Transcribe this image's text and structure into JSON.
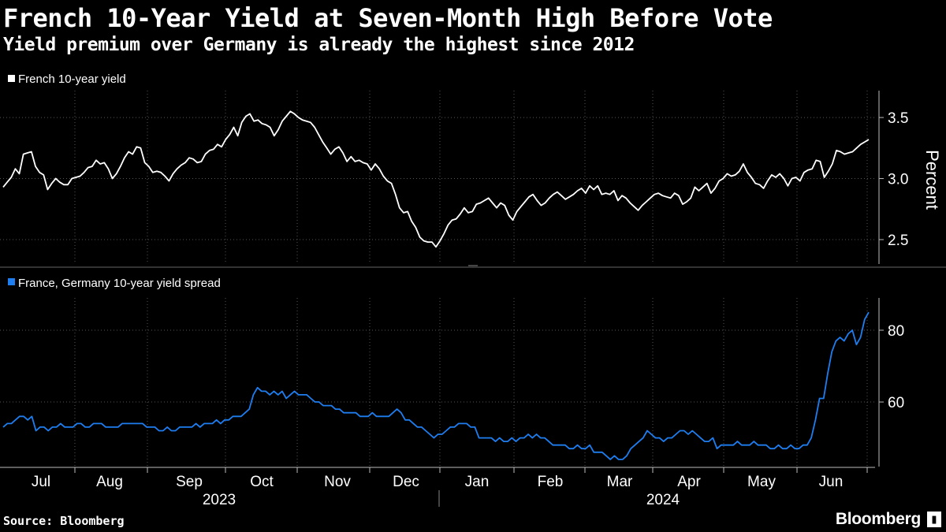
{
  "header": {
    "title": "French 10-Year Yield at Seven-Month High Before Vote",
    "subtitle": "Yield premium over Germany is already the highest since 2012"
  },
  "footer": {
    "source": "Source: Bloomberg",
    "brand": "Bloomberg"
  },
  "colors": {
    "background": "#000000",
    "yield_line": "#ffffff",
    "spread_line": "#1e7ef0",
    "grid": "#555555"
  },
  "chart_data": [
    {
      "type": "line",
      "title": "French 10-year yield",
      "legend": "French 10-year yield",
      "ylabel": "Percent",
      "ylim": [
        2.3,
        3.72
      ],
      "yticks": [
        2.5,
        3.0,
        3.5
      ],
      "ytick_labels": [
        "2.5",
        "3.0",
        "3.5"
      ],
      "x_start": "2023-06-26",
      "x_end": "2024-06-24",
      "values": [
        2.93,
        2.97,
        3.01,
        3.08,
        3.04,
        3.2,
        3.21,
        3.22,
        3.1,
        3.05,
        3.03,
        2.91,
        2.96,
        3.0,
        2.97,
        2.95,
        2.95,
        3.0,
        3.01,
        3.02,
        3.05,
        3.09,
        3.1,
        3.15,
        3.12,
        3.13,
        3.08,
        3.0,
        3.04,
        3.1,
        3.17,
        3.22,
        3.2,
        3.26,
        3.25,
        3.13,
        3.1,
        3.05,
        3.06,
        3.05,
        3.02,
        2.98,
        3.04,
        3.08,
        3.11,
        3.13,
        3.17,
        3.16,
        3.13,
        3.14,
        3.2,
        3.23,
        3.24,
        3.28,
        3.26,
        3.32,
        3.36,
        3.42,
        3.35,
        3.46,
        3.51,
        3.53,
        3.47,
        3.48,
        3.45,
        3.44,
        3.42,
        3.35,
        3.4,
        3.47,
        3.51,
        3.55,
        3.53,
        3.5,
        3.48,
        3.47,
        3.46,
        3.42,
        3.36,
        3.3,
        3.25,
        3.2,
        3.24,
        3.26,
        3.21,
        3.14,
        3.18,
        3.14,
        3.15,
        3.13,
        3.12,
        3.07,
        3.12,
        3.08,
        3.02,
        2.98,
        2.96,
        2.87,
        2.76,
        2.72,
        2.73,
        2.65,
        2.6,
        2.52,
        2.49,
        2.48,
        2.48,
        2.44,
        2.49,
        2.55,
        2.62,
        2.66,
        2.67,
        2.71,
        2.76,
        2.72,
        2.73,
        2.79,
        2.8,
        2.82,
        2.84,
        2.8,
        2.76,
        2.8,
        2.78,
        2.7,
        2.66,
        2.73,
        2.77,
        2.81,
        2.85,
        2.87,
        2.82,
        2.78,
        2.8,
        2.84,
        2.87,
        2.89,
        2.86,
        2.83,
        2.85,
        2.87,
        2.9,
        2.92,
        2.88,
        2.94,
        2.91,
        2.94,
        2.87,
        2.88,
        2.87,
        2.9,
        2.82,
        2.86,
        2.84,
        2.8,
        2.77,
        2.74,
        2.78,
        2.81,
        2.84,
        2.87,
        2.88,
        2.86,
        2.85,
        2.84,
        2.88,
        2.86,
        2.79,
        2.81,
        2.84,
        2.93,
        2.9,
        2.93,
        2.96,
        2.88,
        2.92,
        2.98,
        3.0,
        3.04,
        3.02,
        3.03,
        3.06,
        3.12,
        3.05,
        3.01,
        2.96,
        2.95,
        2.92,
        2.98,
        3.03,
        3.01,
        3.04,
        3.0,
        2.94,
        3.0,
        3.01,
        2.98,
        3.05,
        3.07,
        3.08,
        3.15,
        3.14,
        3.01,
        3.06,
        3.12,
        3.23,
        3.22,
        3.2,
        3.21,
        3.22,
        3.25,
        3.28,
        3.3,
        3.32
      ]
    },
    {
      "type": "line",
      "title": "France, Germany 10-year yield spread",
      "legend": "France, Germany 10-year yield spread",
      "ylabel": "",
      "ylim": [
        42,
        89
      ],
      "yticks": [
        60,
        80
      ],
      "ytick_labels": [
        "60",
        "80"
      ],
      "x_start": "2023-06-26",
      "x_end": "2024-06-24",
      "values": [
        53,
        54,
        54,
        55,
        56,
        56,
        55,
        56,
        52,
        53,
        53,
        52,
        53,
        53,
        54,
        53,
        53,
        53,
        54,
        54,
        53,
        53,
        54,
        54,
        54,
        53,
        53,
        53,
        53,
        54,
        54,
        54,
        54,
        54,
        54,
        53,
        53,
        53,
        52,
        52,
        53,
        52,
        52,
        53,
        53,
        53,
        53,
        54,
        53,
        54,
        54,
        54,
        55,
        54,
        55,
        55,
        56,
        56,
        56,
        57,
        58,
        62,
        64,
        63,
        63,
        62,
        63,
        62,
        63,
        61,
        62,
        63,
        62,
        62,
        62,
        61,
        60,
        60,
        59,
        59,
        59,
        58,
        58,
        57,
        57,
        57,
        57,
        56,
        56,
        56,
        57,
        56,
        56,
        56,
        56,
        57,
        58,
        57,
        55,
        55,
        54,
        53,
        53,
        52,
        51,
        50,
        51,
        51,
        52,
        53,
        53,
        54,
        54,
        54,
        53,
        53,
        50,
        50,
        50,
        50,
        49,
        50,
        49,
        49,
        50,
        49,
        50,
        50,
        51,
        50,
        51,
        50,
        50,
        49,
        48,
        48,
        48,
        48,
        47,
        47,
        48,
        47,
        47,
        48,
        46,
        46,
        46,
        45,
        44,
        45,
        44,
        44,
        45,
        47,
        48,
        49,
        50,
        52,
        51,
        50,
        50,
        49,
        50,
        50,
        51,
        52,
        52,
        51,
        52,
        51,
        50,
        49,
        49,
        50,
        47,
        48,
        48,
        48,
        48,
        49,
        48,
        48,
        48,
        49,
        48,
        48,
        48,
        47,
        47,
        48,
        47,
        47,
        48,
        47,
        47,
        48,
        48,
        50,
        55,
        61,
        61,
        68,
        74,
        77,
        78,
        77,
        79,
        80,
        76,
        78,
        83,
        85
      ]
    },
    {
      "type": "axis",
      "x_tick_labels": [
        "Jul",
        "Aug",
        "Sep",
        "Oct",
        "Nov",
        "Dec",
        "Jan",
        "Feb",
        "Mar",
        "Apr",
        "May",
        "Jun"
      ],
      "year_labels": [
        "2023",
        "2024"
      ]
    }
  ]
}
